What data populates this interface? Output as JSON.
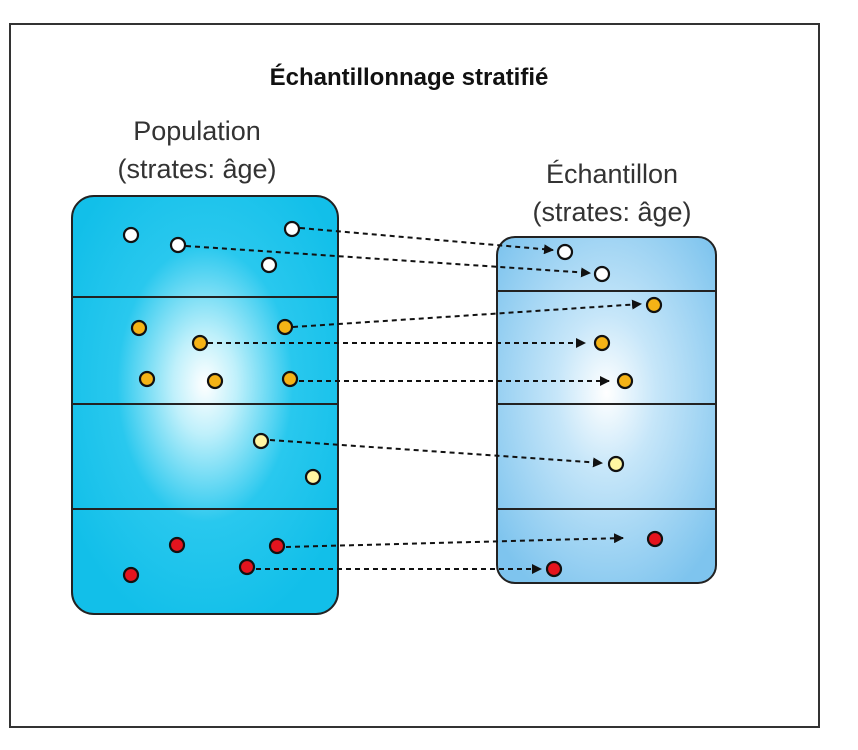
{
  "title": "Échantillonnage stratifié",
  "population": {
    "label_line1": "Population",
    "label_line2": "(strates: âge)",
    "fill_color": "#19C4EC"
  },
  "sample": {
    "label_line1": "Échantillon",
    "label_line2": "(strates: âge)",
    "fill_color": "#8CCBF0"
  },
  "strata_colors": {
    "stratum_1": "#ffffff",
    "stratum_2": "#F5B316",
    "stratum_3": "#FFF6A2",
    "stratum_4": "#E4141E"
  }
}
